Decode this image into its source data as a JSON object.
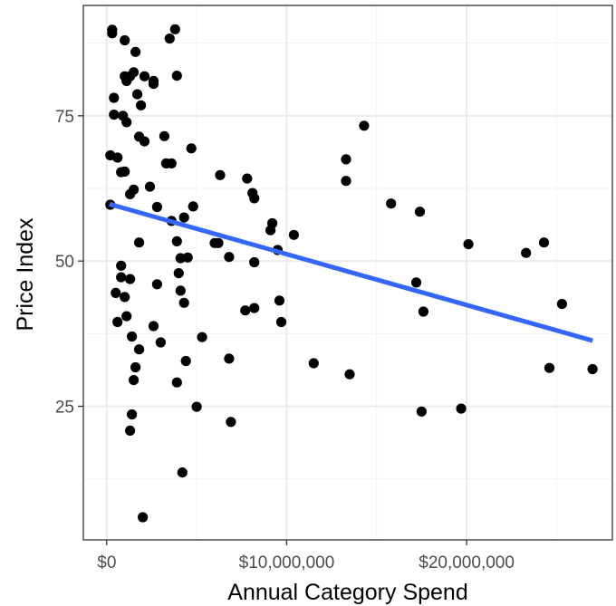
{
  "chart_data": {
    "type": "scatter",
    "title": "",
    "xlabel": "Annual Category Spend",
    "ylabel": "Price Index",
    "xlim": [
      -1300000,
      28100000
    ],
    "ylim": [
      2,
      94
    ],
    "x_ticks": [
      {
        "value": 0,
        "label": "$0"
      },
      {
        "value": 10000000,
        "label": "$10,000,000"
      },
      {
        "value": 20000000,
        "label": "$20,000,000"
      }
    ],
    "y_ticks": [
      {
        "value": 25,
        "label": "25"
      },
      {
        "value": 50,
        "label": "50"
      },
      {
        "value": 75,
        "label": "75"
      }
    ],
    "x_minor": [
      -5000000,
      5000000,
      15000000,
      25000000
    ],
    "y_minor": [
      12.5,
      37.5,
      62.5,
      87.5
    ],
    "grid": true,
    "point_color": "#000000",
    "trend_color": "#3366ff",
    "trend_line": {
      "x": [
        150000,
        27000000
      ],
      "y": [
        59.8,
        36.3
      ]
    },
    "points": [
      [
        300000,
        89.8
      ],
      [
        300000,
        89.2
      ],
      [
        1000000,
        88.0
      ],
      [
        3800000,
        89.9
      ],
      [
        3500000,
        88.3
      ],
      [
        1600000,
        86.0
      ],
      [
        1500000,
        82.5
      ],
      [
        1000000,
        81.8
      ],
      [
        1300000,
        81.8
      ],
      [
        2100000,
        81.8
      ],
      [
        2600000,
        81.0
      ],
      [
        2600000,
        80.5
      ],
      [
        3900000,
        81.9
      ],
      [
        1100000,
        81.0
      ],
      [
        1700000,
        78.7
      ],
      [
        400000,
        78.1
      ],
      [
        1900000,
        76.8
      ],
      [
        400000,
        75.2
      ],
      [
        900000,
        75.0
      ],
      [
        1100000,
        73.9
      ],
      [
        1800000,
        71.4
      ],
      [
        2100000,
        70.6
      ],
      [
        3200000,
        71.5
      ],
      [
        4700000,
        69.4
      ],
      [
        200000,
        68.2
      ],
      [
        600000,
        67.8
      ],
      [
        3300000,
        66.8
      ],
      [
        3600000,
        66.8
      ],
      [
        800000,
        65.3
      ],
      [
        1000000,
        65.4
      ],
      [
        6300000,
        64.8
      ],
      [
        7800000,
        64.2
      ],
      [
        13300000,
        67.5
      ],
      [
        13300000,
        63.8
      ],
      [
        14300000,
        73.3
      ],
      [
        2400000,
        62.8
      ],
      [
        1500000,
        62.3
      ],
      [
        1300000,
        61.5
      ],
      [
        8100000,
        61.7
      ],
      [
        8200000,
        60.8
      ],
      [
        15800000,
        59.9
      ],
      [
        17400000,
        58.5
      ],
      [
        200000,
        59.7
      ],
      [
        2800000,
        59.3
      ],
      [
        4800000,
        59.4
      ],
      [
        4300000,
        57.5
      ],
      [
        3600000,
        56.9
      ],
      [
        9200000,
        56.5
      ],
      [
        9100000,
        55.3
      ],
      [
        10400000,
        54.5
      ],
      [
        1800000,
        53.2
      ],
      [
        3900000,
        53.4
      ],
      [
        6000000,
        53.1
      ],
      [
        6200000,
        53.1
      ],
      [
        9500000,
        51.9
      ],
      [
        20100000,
        52.9
      ],
      [
        23300000,
        51.4
      ],
      [
        24300000,
        53.2
      ],
      [
        4100000,
        50.5
      ],
      [
        4500000,
        50.6
      ],
      [
        6800000,
        50.7
      ],
      [
        8200000,
        49.8
      ],
      [
        800000,
        49.2
      ],
      [
        800000,
        47.2
      ],
      [
        1300000,
        46.9
      ],
      [
        4000000,
        47.9
      ],
      [
        17200000,
        46.3
      ],
      [
        2800000,
        46.0
      ],
      [
        500000,
        44.5
      ],
      [
        1000000,
        43.8
      ],
      [
        4100000,
        44.9
      ],
      [
        4300000,
        42.8
      ],
      [
        9600000,
        43.2
      ],
      [
        25300000,
        42.6
      ],
      [
        8200000,
        41.9
      ],
      [
        7700000,
        41.5
      ],
      [
        17600000,
        41.3
      ],
      [
        1100000,
        40.5
      ],
      [
        600000,
        39.5
      ],
      [
        9700000,
        39.5
      ],
      [
        2600000,
        38.8
      ],
      [
        1400000,
        37.0
      ],
      [
        5300000,
        36.9
      ],
      [
        3000000,
        36.0
      ],
      [
        1800000,
        34.8
      ],
      [
        4400000,
        32.8
      ],
      [
        6800000,
        33.2
      ],
      [
        11500000,
        32.4
      ],
      [
        13500000,
        30.5
      ],
      [
        24600000,
        31.6
      ],
      [
        27000000,
        31.4
      ],
      [
        1600000,
        31.7
      ],
      [
        1500000,
        29.5
      ],
      [
        3900000,
        29.1
      ],
      [
        5000000,
        24.9
      ],
      [
        1400000,
        23.6
      ],
      [
        17500000,
        24.1
      ],
      [
        19700000,
        24.6
      ],
      [
        6900000,
        22.3
      ],
      [
        1300000,
        20.8
      ],
      [
        4200000,
        13.6
      ],
      [
        2000000,
        5.9
      ]
    ]
  }
}
